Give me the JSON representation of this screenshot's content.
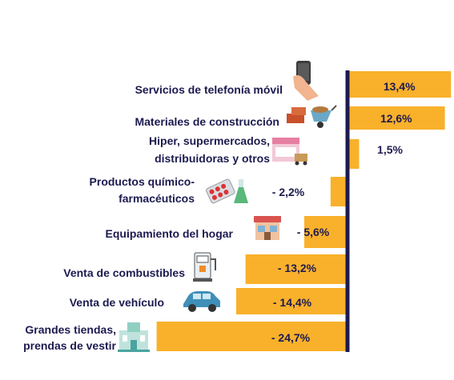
{
  "chart_data": {
    "type": "bar",
    "orientation": "horizontal",
    "categories": [
      [
        "Servicios de telefonía móvil"
      ],
      [
        "Materiales de construcción"
      ],
      [
        "Hiper, supermercados,",
        "distribuidoras y otros"
      ],
      [
        "Productos químico-",
        "farmacéuticos"
      ],
      [
        "Equipamiento del hogar"
      ],
      [
        "Venta de combustibles"
      ],
      [
        "Venta de vehículo"
      ],
      [
        "Grandes tiendas,",
        "prendas de vestir"
      ]
    ],
    "values": [
      13.4,
      12.6,
      1.5,
      -2.2,
      -5.6,
      -13.2,
      -14.4,
      -24.7
    ],
    "value_labels": [
      "13,4%",
      "12,6%",
      "1,5%",
      "- 2,2%",
      "- 5,6%",
      "- 13,2%",
      "- 14,4%",
      "- 24,7%"
    ],
    "icons": [
      "smartphone-icon",
      "construction-materials-icon",
      "supermarket-icon",
      "pharmaceutical-icon",
      "home-store-icon",
      "fuel-pump-icon",
      "car-icon",
      "department-store-icon"
    ],
    "bar_color": "#f9b12b",
    "axis_color": "#1c1a4f",
    "text_color": "#1c1a4f",
    "title": "",
    "xlabel": "",
    "ylabel": ""
  }
}
